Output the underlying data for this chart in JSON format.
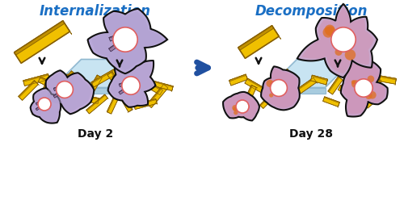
{
  "title_left": "Internalization",
  "title_right": "Decomposition",
  "label_left": "Day 2",
  "label_right": "Day 28",
  "title_color": "#1a6fc4",
  "label_fontsize": 10,
  "title_fontsize": 12,
  "bg_color": "#ffffff",
  "plate_color": "#c8e4f2",
  "plate_edge": "#90b8d0",
  "nw_top": "#f0c000",
  "nw_side": "#c09000",
  "nw_end": "#f8e080",
  "nw_edge": "#886000",
  "cell_body_left": "#c8b8e0",
  "cell_body_right": "#d0a8c8",
  "cell_border": "#111111",
  "cell_nucleus": "#ffffff",
  "cell_nucleus_border": "#e06060",
  "internalized_color": "#907080",
  "internalized_edge": "#604050",
  "internalized_end": "#b090a0",
  "decomp_orange": "#e07020",
  "decomp_pink": "#d06090",
  "arrow_color": "#2050a0",
  "black": "#111111"
}
